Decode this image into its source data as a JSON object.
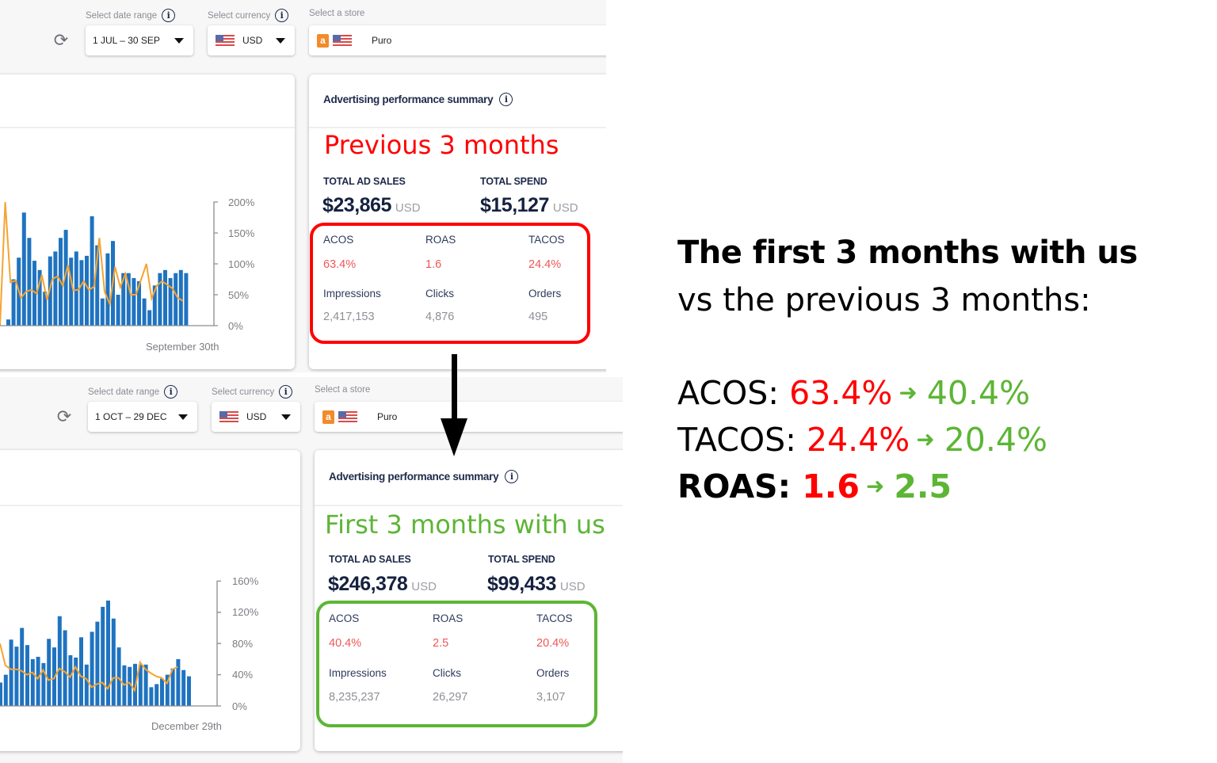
{
  "colors": {
    "bar": "#1f73c0",
    "line": "#f5a431",
    "previous_accent": "#ff0000",
    "first_accent": "#5db535",
    "metric_value_red": "#ef5757",
    "navy_text": "#1e2a4a"
  },
  "top_panel": {
    "filters": {
      "date_range_label": "Select date range",
      "date_range_value": "1 JUL – 30 SEP",
      "currency_label": "Select currency",
      "currency_value": "USD",
      "store_label": "Select a store",
      "store_value": "Puro"
    },
    "summary": {
      "title": "Advertising performance summary",
      "period_label": "Previous 3 months",
      "total_ad_sales_label": "TOTAL AD SALES",
      "total_ad_sales_value": "$23,865",
      "total_spend_label": "TOTAL SPEND",
      "total_spend_value": "$15,127",
      "currency_suffix": "USD",
      "metrics": [
        {
          "label": "ACOS",
          "value": "63.4%"
        },
        {
          "label": "ROAS",
          "value": "1.6"
        },
        {
          "label": "TACOS",
          "value": "24.4%"
        },
        {
          "label": "Impressions",
          "value": "2,417,153"
        },
        {
          "label": "Clicks",
          "value": "4,876"
        },
        {
          "label": "Orders",
          "value": "495"
        }
      ]
    }
  },
  "bottom_panel": {
    "filters": {
      "date_range_label": "Select date range",
      "date_range_value": "1 OCT – 29 DEC",
      "currency_label": "Select currency",
      "currency_value": "USD",
      "store_label": "Select a store",
      "store_value": "Puro"
    },
    "summary": {
      "title": "Advertising performance summary",
      "period_label": "First 3 months with us",
      "total_ad_sales_label": "TOTAL AD SALES",
      "total_ad_sales_value": "$246,378",
      "total_spend_label": "TOTAL SPEND",
      "total_spend_value": "$99,433",
      "currency_suffix": "USD",
      "metrics": [
        {
          "label": "ACOS",
          "value": "40.4%"
        },
        {
          "label": "ROAS",
          "value": "2.5"
        },
        {
          "label": "TACOS",
          "value": "20.4%"
        },
        {
          "label": "Impressions",
          "value": "8,235,237"
        },
        {
          "label": "Clicks",
          "value": "26,297"
        },
        {
          "label": "Orders",
          "value": "3,107"
        }
      ]
    }
  },
  "comparison": {
    "headline": "The first 3 months with us",
    "subline": "vs the previous 3 months:",
    "rows": [
      {
        "label": "ACOS:",
        "before": "63.4%",
        "after": "40.4%",
        "bold": false
      },
      {
        "label": "TACOS:",
        "before": "24.4%",
        "after": "20.4%",
        "bold": false
      },
      {
        "label": "ROAS:",
        "before": "1.6",
        "after": "2.5",
        "bold": true
      }
    ],
    "arrow_glyph": "➜"
  },
  "chart_data": [
    {
      "type": "bar",
      "title": "",
      "xlabel": "September 30th",
      "ylabel": "",
      "y_ticks": [
        "200%",
        "150%",
        "100%",
        "50%",
        "0%"
      ],
      "ylim": [
        0,
        200
      ],
      "grid": false,
      "series": [
        {
          "name": "bars",
          "kind": "bar",
          "values": [
            10,
            75,
            110,
            183,
            142,
            105,
            90,
            55,
            112,
            120,
            142,
            155,
            110,
            120,
            106,
            113,
            177,
            130,
            44,
            117,
            137,
            50,
            85,
            85,
            77,
            72,
            44,
            25,
            65,
            85,
            90,
            77,
            85,
            90,
            85
          ]
        },
        {
          "name": "line",
          "kind": "line",
          "values": [
            -20,
            200,
            70,
            73,
            45,
            55,
            58,
            52,
            82,
            42,
            75,
            80,
            65,
            98,
            57,
            58,
            72,
            58,
            63,
            142,
            55,
            35,
            95,
            62,
            84,
            50,
            50,
            75,
            100,
            44,
            65,
            72,
            66,
            60,
            45,
            40
          ]
        }
      ]
    },
    {
      "type": "bar",
      "title": "",
      "xlabel": "December 29th",
      "ylabel": "",
      "y_ticks": [
        "160%",
        "120%",
        "80%",
        "40%",
        "0%"
      ],
      "ylim": [
        0,
        160
      ],
      "grid": false,
      "series": [
        {
          "name": "bars",
          "kind": "bar",
          "values": [
            30,
            40,
            85,
            76,
            100,
            78,
            60,
            63,
            55,
            86,
            75,
            115,
            97,
            65,
            62,
            88,
            53,
            95,
            108,
            127,
            135,
            112,
            75,
            52,
            50,
            54,
            53,
            53,
            24,
            28,
            35,
            40,
            48,
            60,
            46,
            38
          ]
        },
        {
          "name": "line",
          "kind": "line",
          "values": [
            80,
            52,
            47,
            47,
            45,
            40,
            43,
            35,
            46,
            33,
            35,
            48,
            44,
            37,
            50,
            38,
            35,
            24,
            28,
            30,
            22,
            36,
            36,
            27,
            30,
            20,
            56,
            47,
            42,
            38,
            36,
            29,
            47,
            50
          ]
        }
      ]
    }
  ]
}
